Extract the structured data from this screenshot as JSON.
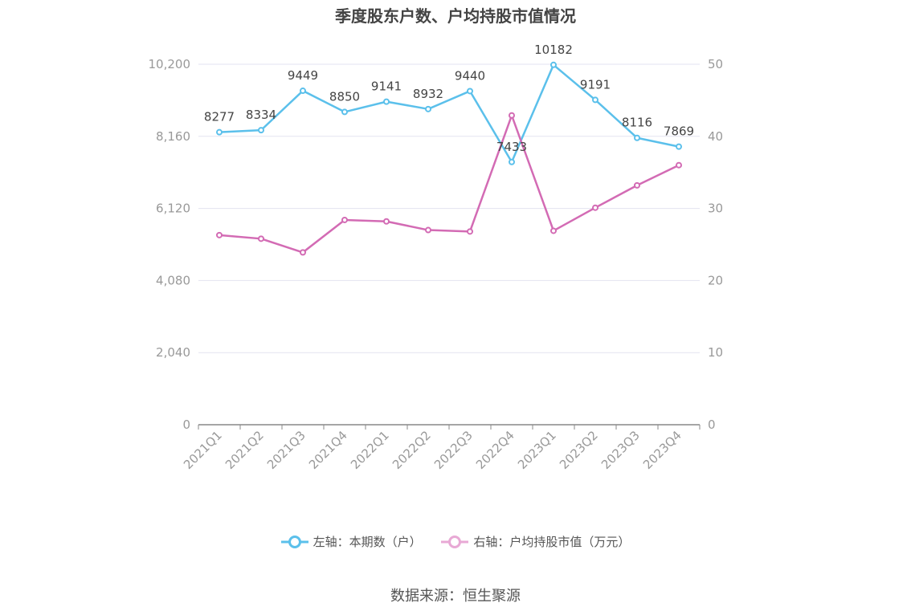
{
  "chart_data": {
    "type": "line",
    "title": "季度股东户数、户均持股市值情况",
    "categories": [
      "2021Q1",
      "2021Q2",
      "2021Q3",
      "2021Q4",
      "2022Q1",
      "2022Q2",
      "2022Q3",
      "2022Q4",
      "2023Q1",
      "2023Q2",
      "2023Q3",
      "2023Q4"
    ],
    "series": [
      {
        "name": "左轴：本期数（户）",
        "axis": "left",
        "color": "#5bc0eb",
        "values": [
          8277,
          8334,
          9449,
          8850,
          9141,
          8932,
          9440,
          7433,
          10182,
          9191,
          8116,
          7869
        ]
      },
      {
        "name": "右轴：户均持股市值（万元）",
        "axis": "right",
        "color": "#d36bb4",
        "values": [
          26.3,
          25.8,
          23.9,
          28.4,
          28.2,
          27.0,
          26.8,
          42.9,
          26.9,
          30.1,
          33.2,
          36.0
        ]
      }
    ],
    "y_left": {
      "ylim": [
        0,
        10200
      ],
      "ticks": [
        "0",
        "2,040",
        "4,080",
        "6,120",
        "8,160",
        "10,200"
      ]
    },
    "y_right": {
      "ylim": [
        0,
        50
      ],
      "ticks": [
        "0",
        "10",
        "20",
        "30",
        "40",
        "50"
      ]
    },
    "grid": true,
    "legend_position": "bottom",
    "source": "数据来源：恒生聚源"
  }
}
